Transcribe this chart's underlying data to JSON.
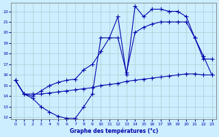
{
  "title": "Graphe des températures (°c)",
  "bg_color": "#cceeff",
  "grid_color": "#aacccc",
  "line_color": "#0000aa",
  "xlim": [
    -0.5,
    23.5
  ],
  "ylim": [
    11.8,
    22.8
  ],
  "xticks": [
    0,
    1,
    2,
    3,
    4,
    5,
    6,
    7,
    8,
    9,
    10,
    11,
    12,
    13,
    14,
    15,
    16,
    17,
    18,
    19,
    20,
    21,
    22,
    23
  ],
  "yticks": [
    12,
    13,
    14,
    15,
    16,
    17,
    18,
    19,
    20,
    21,
    22
  ],
  "line1_x": [
    0,
    1,
    2,
    3,
    4,
    5,
    6,
    7,
    8,
    9,
    10,
    11,
    12,
    13,
    14,
    15,
    16,
    17,
    18,
    19,
    20,
    21,
    22,
    23
  ],
  "line1_y": [
    15.5,
    14.2,
    13.8,
    13.0,
    12.5,
    12.1,
    11.9,
    11.9,
    13.0,
    14.2,
    19.5,
    19.5,
    21.5,
    16.0,
    22.5,
    21.5,
    22.2,
    22.2,
    22.0,
    22.0,
    21.5,
    19.5,
    17.8,
    16.0
  ],
  "line2_x": [
    0,
    1,
    2,
    3,
    4,
    5,
    6,
    7,
    8,
    9,
    10,
    11,
    12,
    13,
    14,
    15,
    16,
    17,
    18,
    19,
    20,
    21,
    22,
    23
  ],
  "line2_y": [
    15.5,
    14.2,
    14.2,
    14.2,
    14.3,
    14.4,
    14.5,
    14.6,
    14.7,
    14.8,
    15.0,
    15.1,
    15.2,
    15.4,
    15.5,
    15.6,
    15.7,
    15.8,
    15.9,
    16.0,
    16.1,
    16.1,
    16.0,
    16.0
  ],
  "line3_x": [
    0,
    1,
    2,
    3,
    4,
    5,
    6,
    7,
    8,
    9,
    10,
    11,
    12,
    13,
    14,
    15,
    16,
    17,
    18,
    19,
    20,
    21,
    22,
    23
  ],
  "line3_y": [
    15.5,
    14.2,
    14.0,
    14.5,
    15.0,
    15.3,
    15.5,
    15.6,
    16.5,
    17.0,
    18.2,
    19.5,
    19.5,
    16.2,
    20.0,
    20.5,
    20.8,
    21.0,
    21.0,
    21.0,
    21.0,
    19.5,
    17.5,
    17.5
  ]
}
